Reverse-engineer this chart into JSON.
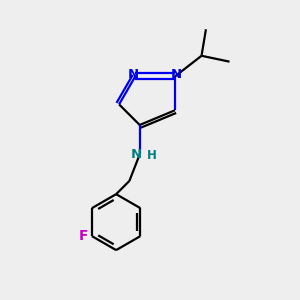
{
  "bg_color": "#eeeeee",
  "bond_color": "#000000",
  "N_color": "#0000ee",
  "NH_color": "#008080",
  "F_color": "#cc00cc",
  "line_width": 1.6,
  "fig_size": [
    3.0,
    3.0
  ],
  "dpi": 100,
  "xlim": [
    0,
    10
  ],
  "ylim": [
    0,
    10
  ]
}
